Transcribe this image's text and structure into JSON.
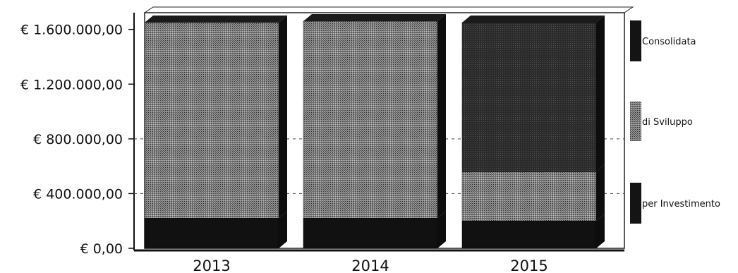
{
  "chart_data": {
    "type": "bar",
    "stacked": true,
    "categories": [
      "2013",
      "2014",
      "2015"
    ],
    "series": [
      {
        "name": "per Investimento",
        "values": [
          220000,
          220000,
          200000
        ],
        "color": "#111111"
      },
      {
        "name": "di Sviluppo",
        "values": [
          1430000,
          1440000,
          360000
        ],
        "color": "#6e6e6e"
      },
      {
        "name": "Consolidata",
        "values": [
          0,
          0,
          1090000
        ],
        "color": "#1a1a1a"
      }
    ],
    "y_ticks": [
      "€ 0,00",
      "€ 400.000,00",
      "€ 800.000,00",
      "€ 1.200.000,00",
      "€ 1.600.000,00"
    ],
    "ylim": [
      0,
      1650000
    ],
    "legend_position": "right",
    "style": "3d"
  }
}
